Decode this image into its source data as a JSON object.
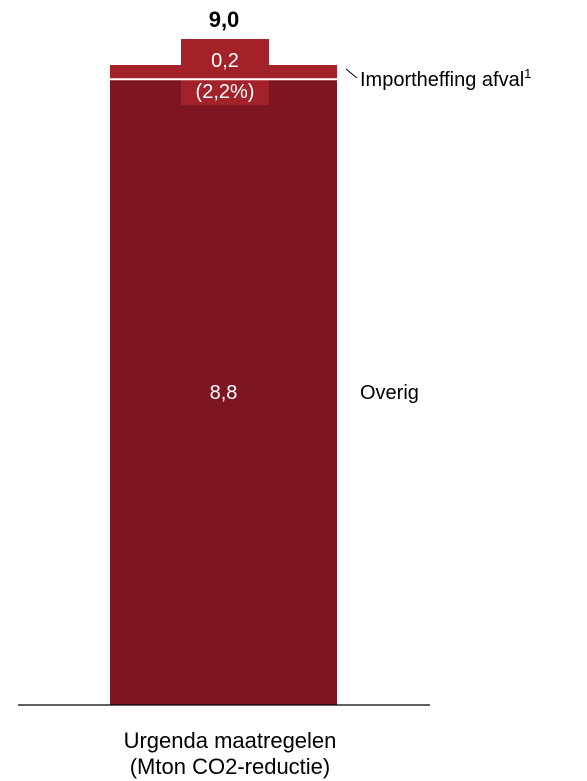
{
  "chart_data": {
    "type": "bar",
    "stacked": true,
    "categories": [
      "Urgenda maatregelen"
    ],
    "unit": "(Mton CO2-reductie)",
    "total_label": "9,0",
    "total": 9.0,
    "ylim": [
      0,
      9.0
    ],
    "grid": false,
    "series": [
      {
        "name": "Overig",
        "values": [
          8.8
        ],
        "value_label": "8,8",
        "color": "#7d1620"
      },
      {
        "name": "Importheffing afval",
        "name_superscript": "1",
        "values": [
          0.2
        ],
        "value_label": "0,2",
        "share_label": "(2,2%)",
        "color": "#a3222a"
      }
    ]
  },
  "colors": {
    "bar_main": "#7d1620",
    "bar_highlight": "#a3222a",
    "axis": "#000000",
    "text": "#000000",
    "label_inside": "#ffffff"
  }
}
